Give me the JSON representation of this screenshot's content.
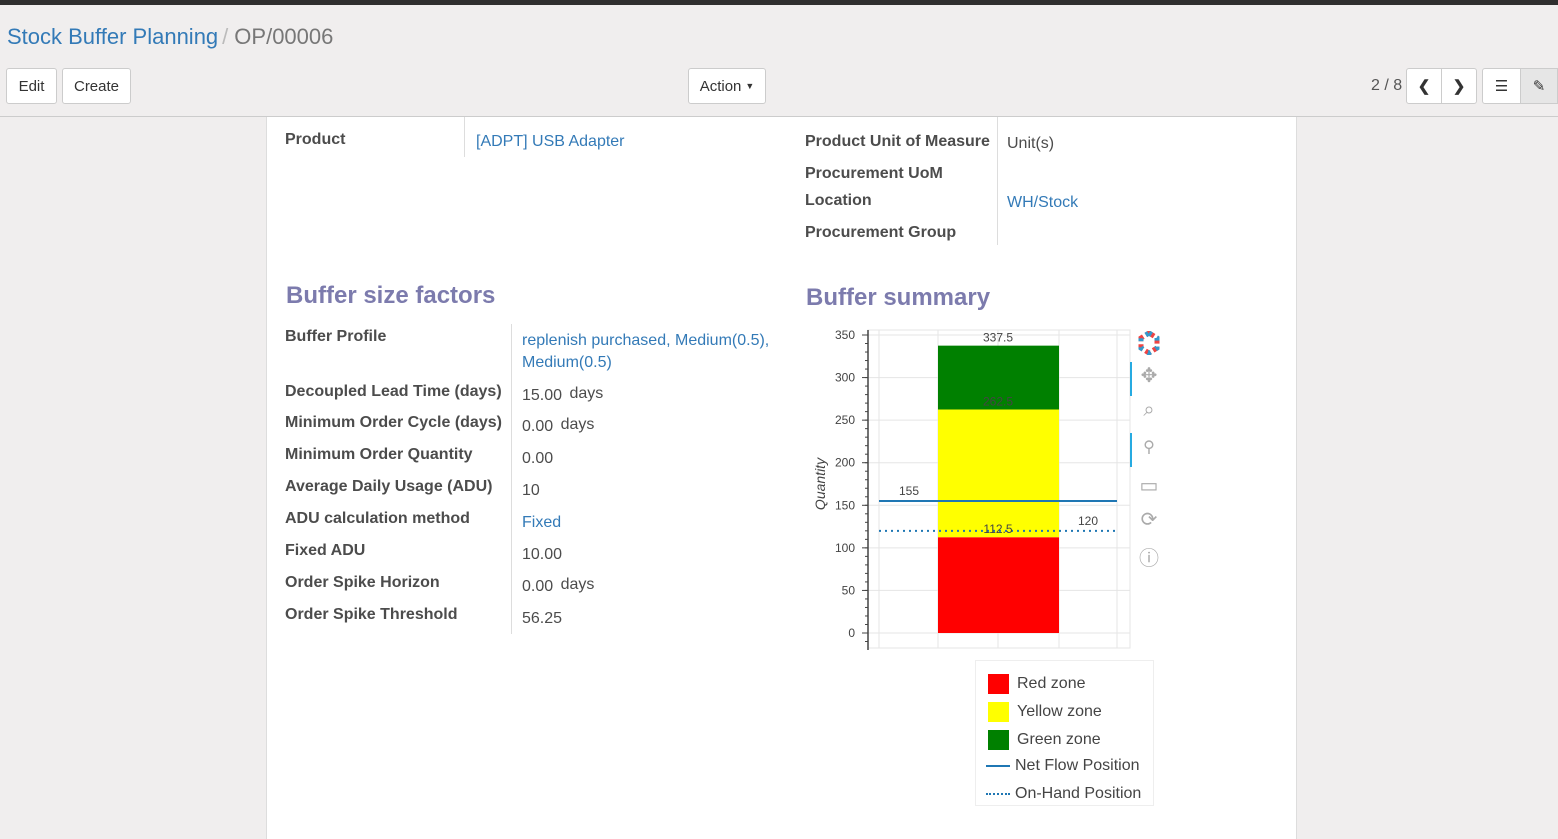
{
  "breadcrumb": {
    "parent": "Stock Buffer Planning",
    "current": "OP/00006"
  },
  "toolbar": {
    "edit": "Edit",
    "create": "Create",
    "action": "Action",
    "pager": "2 / 8"
  },
  "header_fields": {
    "product_label": "Product",
    "product_value": "[ADPT] USB Adapter",
    "uom_label": "Product Unit of Measure",
    "uom_value": "Unit(s)",
    "proc_uom_label": "Procurement UoM",
    "location_label": "Location",
    "location_value": "WH/Stock",
    "proc_group_label": "Procurement Group"
  },
  "buffer_size_factors": {
    "title": "Buffer size factors",
    "rows": [
      {
        "label": "Buffer Profile",
        "value": "replenish purchased, Medium(0.5), Medium(0.5)",
        "link": true
      },
      {
        "label": "Decoupled Lead Time (days)",
        "value": "15.00",
        "unit": "days"
      },
      {
        "label": "Minimum Order Cycle (days)",
        "value": "0.00",
        "unit": "days"
      },
      {
        "label": "Minimum Order Quantity",
        "value": "0.00"
      },
      {
        "label": "Average Daily Usage (ADU)",
        "value": "10"
      },
      {
        "label": "ADU calculation method",
        "value": "Fixed",
        "link": true
      },
      {
        "label": "Fixed ADU",
        "value": "10.00"
      },
      {
        "label": "Order Spike Horizon",
        "value": "0.00",
        "unit": "days"
      },
      {
        "label": "Order Spike Threshold",
        "value": "56.25"
      }
    ]
  },
  "buffer_summary": {
    "title": "Buffer summary"
  },
  "chart_data": {
    "type": "bar",
    "ylabel": "Quantity",
    "ylim": [
      0,
      350
    ],
    "yticks": [
      0,
      50,
      100,
      150,
      200,
      250,
      300,
      350
    ],
    "stacked_bars": [
      {
        "name": "Red zone",
        "from": 0,
        "to": 112.5,
        "color": "#ff0000"
      },
      {
        "name": "Yellow zone",
        "from": 112.5,
        "to": 262.5,
        "color": "#ffff00"
      },
      {
        "name": "Green zone",
        "from": 262.5,
        "to": 337.5,
        "color": "#008000"
      }
    ],
    "bar_labels": [
      "112.5",
      "262.5",
      "337.5"
    ],
    "lines": [
      {
        "name": "Net Flow Position",
        "value": 155,
        "label": "155",
        "style": "solid",
        "color": "#1f77b4"
      },
      {
        "name": "On-Hand Position",
        "value": 120,
        "label": "120",
        "style": "dotted",
        "color": "#1f77b4"
      }
    ],
    "legend": [
      "Red zone",
      "Yellow zone",
      "Green zone",
      "Net Flow Position",
      "On-Hand Position"
    ],
    "grid": true
  }
}
